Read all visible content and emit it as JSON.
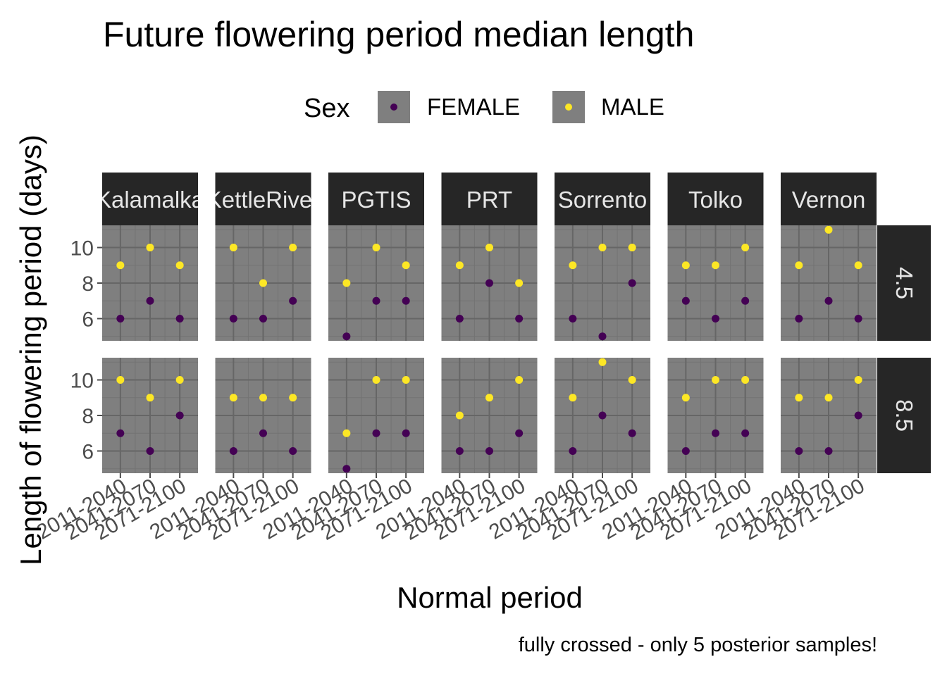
{
  "chart_data": {
    "type": "scatter",
    "title": "Future flowering period median length",
    "xlabel": "Normal period",
    "ylabel": "Length of flowering period (days)",
    "caption": "fully crossed - only 5 posterior samples!",
    "legend": {
      "title": "Sex",
      "position": "top",
      "entries": [
        {
          "label": "FEMALE",
          "color": "#440154"
        },
        {
          "label": "MALE",
          "color": "#FDE725"
        }
      ]
    },
    "panel_background": "#7f7f7f",
    "strip_background": "#262626",
    "grid": true,
    "x_categories": [
      "2011-2040",
      "2041-2070",
      "2071-2100"
    ],
    "y_ticks": [
      6,
      8,
      10
    ],
    "ylim": [
      4.75,
      11.25
    ],
    "columns": [
      "Kalamalka",
      "KettleRiver",
      "PGTIS",
      "PRT",
      "Sorrento",
      "Tolko",
      "Vernon"
    ],
    "rows": [
      "4.5",
      "8.5"
    ],
    "series": [
      {
        "name": "FEMALE",
        "panels": {
          "4.5": {
            "Kalamalka": [
              6,
              7,
              6
            ],
            "KettleRiver": [
              6,
              6,
              7
            ],
            "PGTIS": [
              5,
              7,
              7
            ],
            "PRT": [
              6,
              8,
              6
            ],
            "Sorrento": [
              6,
              5,
              8
            ],
            "Tolko": [
              7,
              6,
              7
            ],
            "Vernon": [
              6,
              7,
              6
            ]
          },
          "8.5": {
            "Kalamalka": [
              7,
              6,
              8
            ],
            "KettleRiver": [
              6,
              7,
              6
            ],
            "PGTIS": [
              5,
              7,
              7
            ],
            "PRT": [
              6,
              6,
              7
            ],
            "Sorrento": [
              6,
              8,
              7
            ],
            "Tolko": [
              6,
              7,
              7
            ],
            "Vernon": [
              6,
              6,
              8
            ]
          }
        }
      },
      {
        "name": "MALE",
        "panels": {
          "4.5": {
            "Kalamalka": [
              9,
              10,
              9
            ],
            "KettleRiver": [
              10,
              8,
              10
            ],
            "PGTIS": [
              8,
              10,
              9
            ],
            "PRT": [
              9,
              10,
              8
            ],
            "Sorrento": [
              9,
              10,
              10
            ],
            "Tolko": [
              9,
              9,
              10
            ],
            "Vernon": [
              9,
              11,
              9
            ]
          },
          "8.5": {
            "Kalamalka": [
              10,
              9,
              10
            ],
            "KettleRiver": [
              9,
              9,
              9
            ],
            "PGTIS": [
              7,
              10,
              10
            ],
            "PRT": [
              8,
              9,
              10
            ],
            "Sorrento": [
              9,
              11,
              10
            ],
            "Tolko": [
              9,
              10,
              10
            ],
            "Vernon": [
              9,
              9,
              10
            ]
          }
        }
      }
    ]
  }
}
